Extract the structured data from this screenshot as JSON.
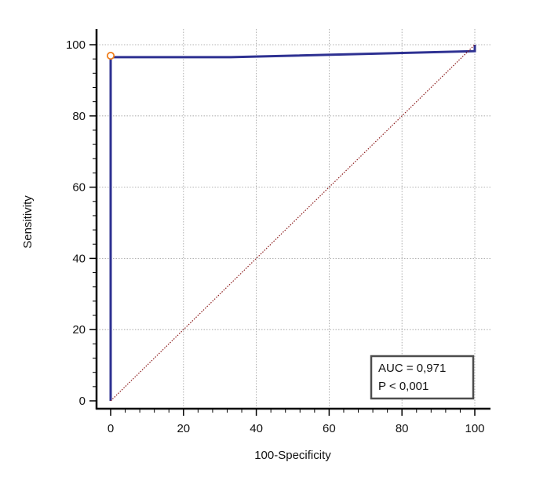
{
  "chart_data": {
    "type": "line",
    "title": "",
    "xlabel": "100-Specificity",
    "ylabel": "Sensitivity",
    "xlim": [
      0,
      100
    ],
    "ylim": [
      0,
      100
    ],
    "xticks": [
      0,
      20,
      40,
      60,
      80,
      100
    ],
    "yticks": [
      0,
      20,
      40,
      60,
      80,
      100
    ],
    "x_tick_labels": [
      "0",
      "20",
      "40",
      "60",
      "80",
      "100"
    ],
    "y_tick_labels": [
      "0",
      "20",
      "40",
      "60",
      "80",
      "100"
    ],
    "grid": true,
    "series": [
      {
        "x": [
          0,
          0,
          0,
          33,
          100,
          100
        ],
        "y": [
          0,
          96.5,
          96.5,
          96.5,
          98.2,
          100
        ],
        "color": "#2e3192"
      },
      {
        "x": [
          0,
          100
        ],
        "y": [
          0,
          100
        ],
        "color": "#8b1a1a",
        "style": "dotted"
      }
    ],
    "marker": {
      "x": 0,
      "y": 96.9,
      "color": "#f07d1a"
    },
    "annotation": {
      "lines": [
        "AUC = 0,971",
        "P < 0,001"
      ],
      "position": "bottom-right"
    }
  }
}
